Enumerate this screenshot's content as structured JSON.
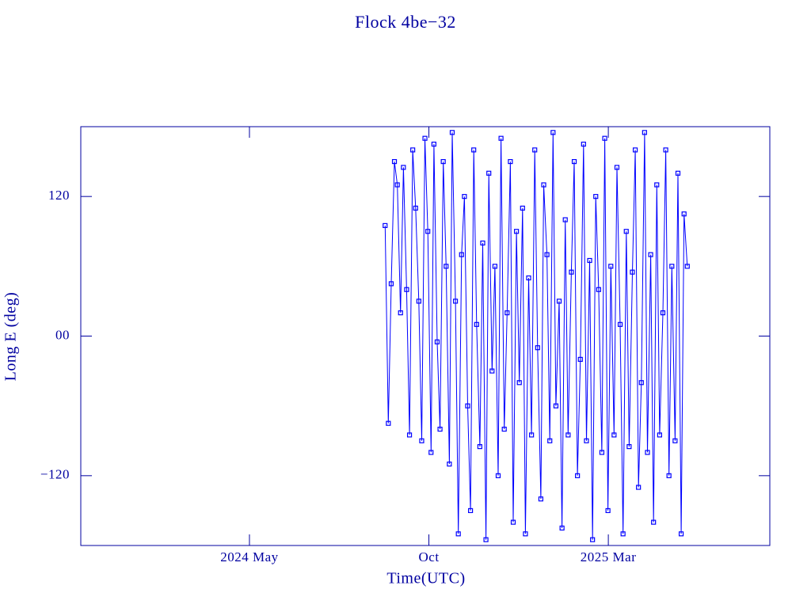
{
  "chart_data": {
    "type": "line",
    "title": "Flock 4be−32",
    "x_label": "Time(UTC)",
    "y_label": "Long E (deg)",
    "xlim": [
      -0.7,
      18.5
    ],
    "ylim": [
      -180,
      180
    ],
    "xticks": [
      {
        "value": 4,
        "label": "2024 May"
      },
      {
        "value": 9,
        "label": "Oct"
      },
      {
        "value": 14,
        "label": "2025 Mar"
      }
    ],
    "yticks": [
      {
        "value": -120,
        "label": "−120"
      },
      {
        "value": 0,
        "label": "00"
      },
      {
        "value": 120,
        "label": "120"
      }
    ],
    "axis_color": "#0000a0",
    "series": [
      {
        "color": "#0000ff",
        "x": [
          7.78,
          7.87,
          7.95,
          8.04,
          8.12,
          8.21,
          8.29,
          8.38,
          8.46,
          8.55,
          8.63,
          8.72,
          8.8,
          8.89,
          8.97,
          9.06,
          9.14,
          9.23,
          9.31,
          9.4,
          9.48,
          9.57,
          9.65,
          9.74,
          9.82,
          9.91,
          9.99,
          10.08,
          10.16,
          10.25,
          10.33,
          10.42,
          10.5,
          10.59,
          10.67,
          10.76,
          10.84,
          10.93,
          11.01,
          11.1,
          11.18,
          11.27,
          11.35,
          11.44,
          11.52,
          11.61,
          11.69,
          11.78,
          11.86,
          11.95,
          12.03,
          12.12,
          12.2,
          12.29,
          12.37,
          12.46,
          12.54,
          12.63,
          12.71,
          12.8,
          12.88,
          12.97,
          13.05,
          13.14,
          13.22,
          13.31,
          13.39,
          13.48,
          13.56,
          13.65,
          13.73,
          13.82,
          13.9,
          13.99,
          14.07,
          14.16,
          14.24,
          14.33,
          14.41,
          14.5,
          14.58,
          14.67,
          14.75,
          14.84,
          14.92,
          15.01,
          15.09,
          15.18,
          15.26,
          15.35,
          15.43,
          15.52,
          15.6,
          15.69,
          15.77,
          15.86,
          15.94,
          16.03,
          16.11,
          16.2
        ],
        "values": [
          95,
          -75,
          45,
          150,
          130,
          20,
          145,
          40,
          -85,
          160,
          110,
          30,
          -90,
          170,
          90,
          -100,
          165,
          -5,
          -80,
          150,
          60,
          -110,
          175,
          30,
          -170,
          70,
          120,
          -60,
          -150,
          160,
          10,
          -95,
          80,
          -175,
          140,
          -30,
          60,
          -120,
          170,
          -80,
          20,
          150,
          -160,
          90,
          -40,
          110,
          -170,
          50,
          -85,
          160,
          -10,
          -140,
          130,
          70,
          -90,
          175,
          -60,
          30,
          -165,
          100,
          -85,
          55,
          150,
          -120,
          -20,
          165,
          -90,
          65,
          -175,
          120,
          40,
          -100,
          170,
          -150,
          60,
          -85,
          145,
          10,
          -170,
          90,
          -95,
          55,
          160,
          -130,
          -40,
          175,
          -100,
          70,
          -160,
          130,
          -85,
          20,
          160,
          -120,
          60,
          -90,
          140,
          -170,
          105,
          60
        ]
      }
    ]
  }
}
